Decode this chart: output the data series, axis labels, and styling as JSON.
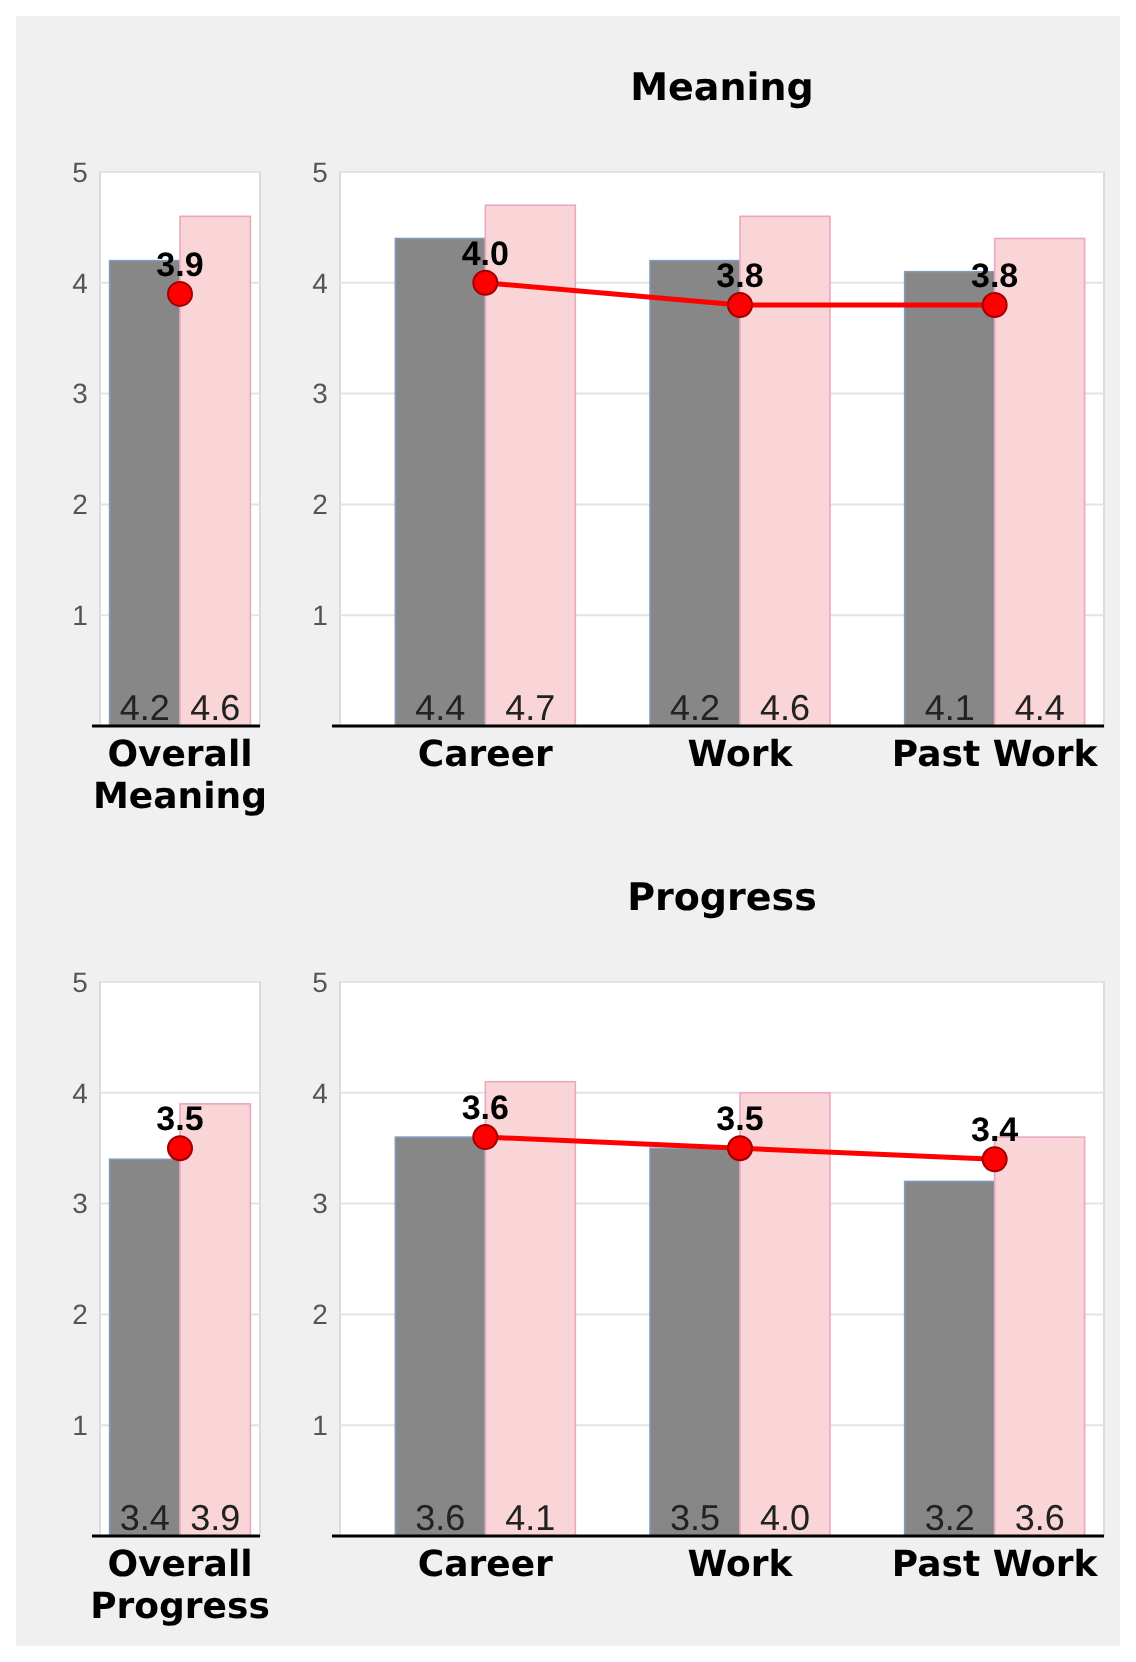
{
  "chart_data": [
    {
      "type": "bar",
      "categories": [
        "Overall Meaning"
      ],
      "series": [
        {
          "color": "#878787",
          "values": [
            4.2
          ],
          "value_labels": [
            "4.2"
          ]
        },
        {
          "color": "#f9d5d7",
          "values": [
            4.6
          ],
          "value_labels": [
            "4.6"
          ]
        },
        {
          "type": "line",
          "color": "#ff0000",
          "values": [
            3.9
          ],
          "value_labels": [
            "3.9"
          ]
        }
      ],
      "ylim": [
        0,
        5
      ],
      "yticks": [
        1,
        2,
        3,
        4,
        5
      ],
      "grid": "y",
      "marker": "circle"
    },
    {
      "type": "bar",
      "title": "Meaning",
      "categories": [
        "Career",
        "Work",
        "Past Work"
      ],
      "series": [
        {
          "color": "#878787",
          "values": [
            4.4,
            4.2,
            4.1
          ],
          "value_labels": [
            "4.4",
            "4.2",
            "4.1"
          ]
        },
        {
          "color": "#f9d5d7",
          "values": [
            4.7,
            4.6,
            4.4
          ],
          "value_labels": [
            "4.7",
            "4.6",
            "4.4"
          ]
        },
        {
          "type": "line",
          "color": "#ff0000",
          "values": [
            4.0,
            3.8,
            3.8
          ],
          "value_labels": [
            "4.0",
            "3.8",
            "3.8"
          ]
        }
      ],
      "ylim": [
        0,
        5
      ],
      "yticks": [
        1,
        2,
        3,
        4,
        5
      ],
      "grid": "y",
      "marker": "circle"
    },
    {
      "type": "bar",
      "categories": [
        "Overall Progress"
      ],
      "series": [
        {
          "color": "#878787",
          "values": [
            3.4
          ],
          "value_labels": [
            "3.4"
          ]
        },
        {
          "color": "#f9d5d7",
          "values": [
            3.9
          ],
          "value_labels": [
            "3.9"
          ]
        },
        {
          "type": "line",
          "color": "#ff0000",
          "values": [
            3.5
          ],
          "value_labels": [
            "3.5"
          ]
        }
      ],
      "ylim": [
        0,
        5
      ],
      "yticks": [
        1,
        2,
        3,
        4,
        5
      ],
      "grid": "y",
      "marker": "circle"
    },
    {
      "type": "bar",
      "title": "Progress",
      "categories": [
        "Career",
        "Work",
        "Past Work"
      ],
      "series": [
        {
          "color": "#878787",
          "values": [
            3.6,
            3.5,
            3.2
          ],
          "value_labels": [
            "3.6",
            "3.5",
            "3.2"
          ]
        },
        {
          "color": "#f9d5d7",
          "values": [
            4.1,
            4.0,
            3.6
          ],
          "value_labels": [
            "4.1",
            "4.0",
            "3.6"
          ]
        },
        {
          "type": "line",
          "color": "#ff0000",
          "values": [
            3.6,
            3.5,
            3.4
          ],
          "value_labels": [
            "3.6",
            "3.5",
            "3.4"
          ]
        }
      ],
      "ylim": [
        0,
        5
      ],
      "yticks": [
        1,
        2,
        3,
        4,
        5
      ],
      "grid": "y",
      "marker": "circle"
    }
  ]
}
